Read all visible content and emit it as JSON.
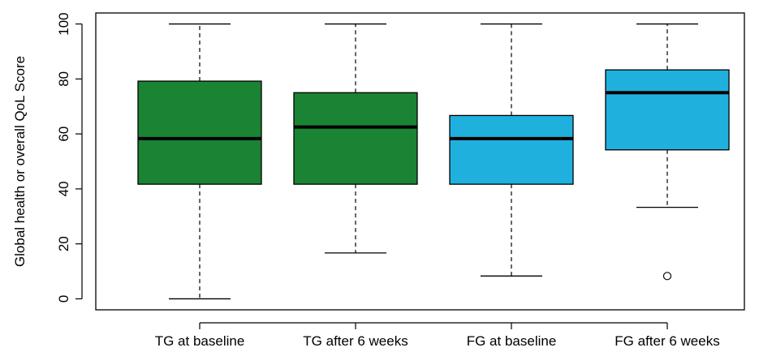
{
  "chart_data": {
    "type": "boxplot",
    "title": "",
    "xlabel": "",
    "ylabel": "Global health or overall QoL Score",
    "ylim": [
      -4,
      104
    ],
    "yticks": [
      0,
      20,
      40,
      60,
      80,
      100
    ],
    "grid": false,
    "categories": [
      "TG at baseline",
      "TG after 6 weeks",
      "FG at baseline",
      "FG after 6 weeks"
    ],
    "boxes": [
      {
        "category": "TG at baseline",
        "min": 0,
        "q1": 41.7,
        "median": 58.3,
        "q3": 79.2,
        "max": 100,
        "outliers": [],
        "color": "#1b8334"
      },
      {
        "category": "TG after 6 weeks",
        "min": 16.7,
        "q1": 41.7,
        "median": 62.5,
        "q3": 75,
        "max": 100,
        "outliers": [],
        "color": "#1b8334"
      },
      {
        "category": "FG at baseline",
        "min": 8.3,
        "q1": 41.7,
        "median": 58.3,
        "q3": 66.7,
        "max": 100,
        "outliers": [],
        "color": "#20b0de"
      },
      {
        "category": "FG after 6 weeks",
        "min": 33.3,
        "q1": 54.2,
        "median": 75,
        "q3": 83.3,
        "max": 100,
        "outliers": [
          8.3
        ],
        "color": "#20b0de"
      }
    ]
  }
}
